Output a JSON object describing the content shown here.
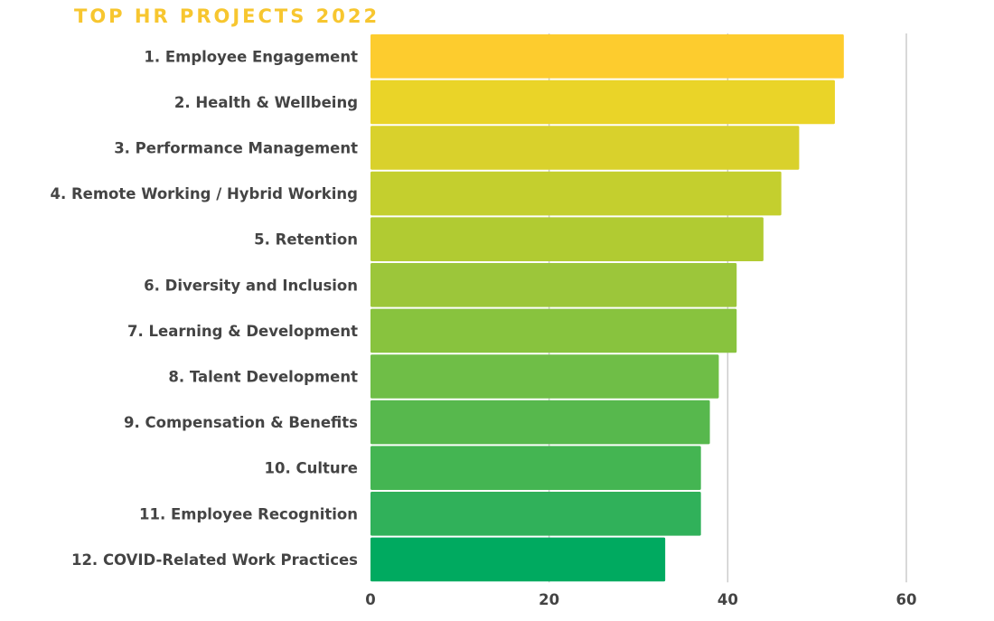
{
  "chart_data": {
    "type": "bar",
    "orientation": "horizontal",
    "title": "TOP HR PROJECTS 2022",
    "xlabel": "",
    "ylabel": "",
    "categories": [
      "1. Employee Engagement",
      "2. Health & Wellbeing",
      "3. Performance Management",
      "4. Remote Working / Hybrid Working",
      "5. Retention",
      "6. Diversity and Inclusion",
      "7. Learning & Development",
      "8. Talent Development",
      "9. Compensation & Benefits",
      "10. Culture",
      "11. Employee Recognition",
      "12. COVID-Related Work Practices"
    ],
    "values": [
      53,
      52,
      48,
      46,
      44,
      41,
      41,
      39,
      38,
      37,
      37,
      33
    ],
    "colors": [
      "#fdcc2e",
      "#ead428",
      "#d9d12c",
      "#c4cf2e",
      "#b1cb32",
      "#9cc63a",
      "#88c33e",
      "#6fbe47",
      "#57b84d",
      "#44b552",
      "#30b15a",
      "#00aa60"
    ],
    "xlim": [
      0,
      60
    ],
    "xticks": [
      0,
      20,
      40,
      60
    ],
    "tick_labels": [
      "0",
      "20",
      "40",
      "60"
    ],
    "grid": true,
    "title_color": "#f7c62f",
    "grid_color": "#cccccc"
  }
}
